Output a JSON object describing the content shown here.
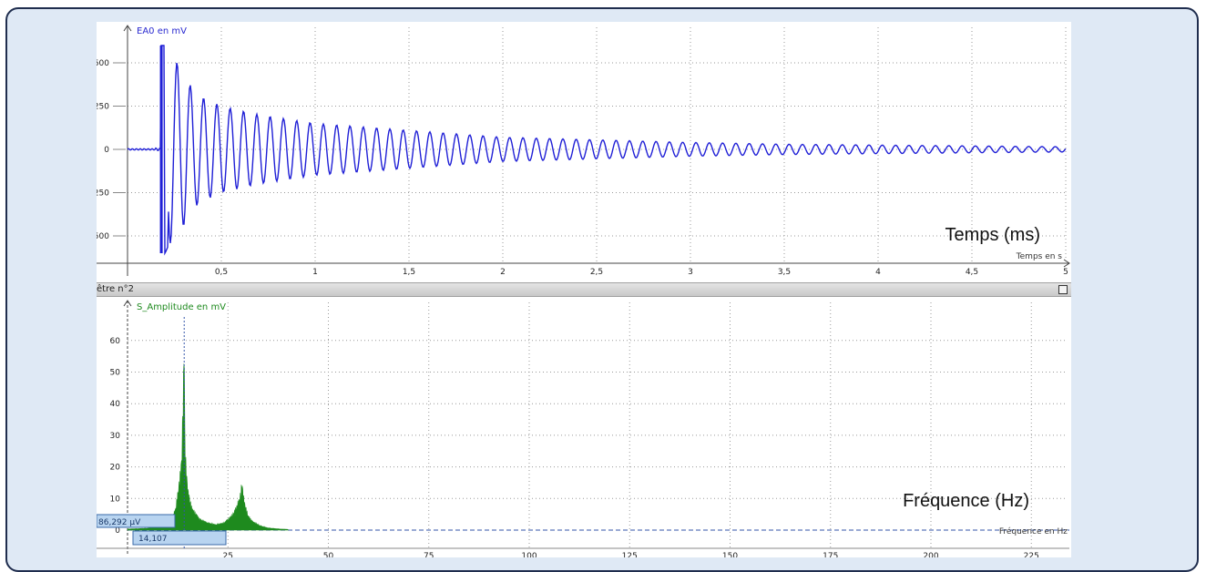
{
  "upper_chart": {
    "series_label": "EA0 en mV",
    "x_axis_label": "Temps en s",
    "annotation": "Temps (ms)",
    "y_ticks": [
      "500",
      "250",
      "0",
      "-250",
      "-500"
    ],
    "x_ticks": [
      "0,5",
      "1",
      "1,5",
      "2",
      "2,5",
      "3",
      "3,5",
      "4",
      "4,5",
      "5"
    ],
    "line_color": "#1f1fd6"
  },
  "window2": {
    "title": "être n°2"
  },
  "lower_chart": {
    "series_label": "S_Amplitude en mV",
    "x_axis_label": "Fréquence en Hz",
    "annotation": "Fréquence (Hz)",
    "y_ticks": [
      "60",
      "50",
      "40",
      "30",
      "20",
      "10",
      "0"
    ],
    "x_ticks": [
      "25",
      "50",
      "75",
      "100",
      "125",
      "150",
      "175",
      "200",
      "225"
    ],
    "cursor_y_value": "86,292 µV",
    "cursor_x_value": "14,107",
    "fill_color": "#1e8a1e"
  },
  "chart_data": [
    {
      "type": "line",
      "title": "",
      "xlabel": "Temps en s",
      "ylabel": "EA0 en mV",
      "xlim": [
        0,
        5
      ],
      "ylim": [
        -600,
        650
      ],
      "grid": true,
      "series": [
        {
          "name": "EA0 en mV",
          "description_points": {
            "x": [
              0.18,
              0.2,
              0.22,
              0.25,
              0.28,
              0.31,
              0.35,
              0.4,
              0.5,
              0.7,
              1.0,
              1.5,
              2.0,
              2.5,
              3.0,
              3.5,
              4.0,
              4.5,
              5.0
            ],
            "envelope": [
              600,
              600,
              550,
              520,
              480,
              420,
              340,
              300,
              250,
              200,
              150,
              110,
              70,
              55,
              40,
              30,
              25,
              20,
              15
            ]
          },
          "oscillation_frequency_hz": 14.1
        }
      ]
    },
    {
      "type": "area",
      "title": "",
      "xlabel": "Fréquence en Hz",
      "ylabel": "S_Amplitude en mV",
      "xlim": [
        -7,
        237
      ],
      "ylim": [
        0,
        62
      ],
      "grid": true,
      "series": [
        {
          "name": "S_Amplitude en mV",
          "x": [
            0,
            5,
            9,
            11,
            12,
            13,
            13.5,
            14,
            14.1,
            14.3,
            15,
            16,
            18,
            20,
            22,
            24,
            25,
            26,
            27,
            28,
            28.5,
            29,
            30,
            31,
            33,
            35,
            38,
            40,
            50,
            100,
            150,
            200,
            237
          ],
          "values": [
            0.3,
            0.5,
            1.2,
            3,
            6,
            14,
            20,
            45,
            59,
            22,
            11,
            6,
            3,
            2,
            1.5,
            2,
            3,
            4,
            6,
            9,
            13,
            8,
            4,
            2.5,
            1.2,
            0.6,
            0.3,
            0.2,
            0.1,
            0.1,
            0.1,
            0.1,
            0.1
          ]
        }
      ],
      "cursor": {
        "x": 14.107,
        "y_label": "86,292 µV"
      }
    }
  ]
}
